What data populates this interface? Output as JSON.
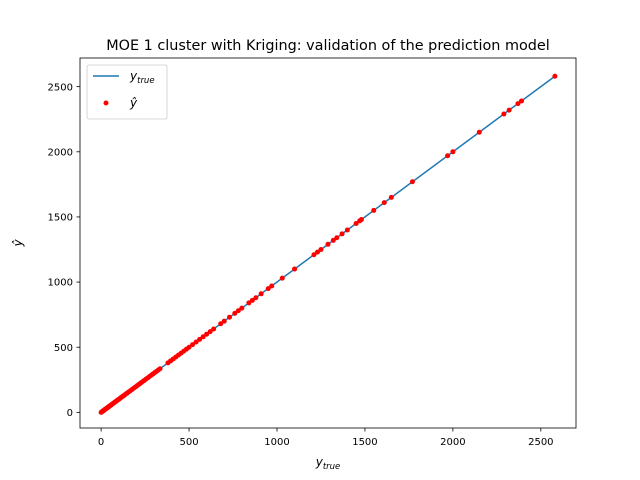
{
  "chart_data": {
    "type": "scatter",
    "title": "MOE 1 cluster with Kriging: validation of the prediction model",
    "xlabel": "y",
    "xlabel_sub": "true",
    "ylabel": "ŷ",
    "xlim": [
      -120,
      2700
    ],
    "ylim": [
      -120,
      2720
    ],
    "xticks": [
      0,
      500,
      1000,
      1500,
      2000,
      2500
    ],
    "yticks": [
      0,
      500,
      1000,
      1500,
      2000,
      2500
    ],
    "xtick_labels": [
      "0",
      "500",
      "1000",
      "1500",
      "2000",
      "2500"
    ],
    "ytick_labels": [
      "0",
      "500",
      "1000",
      "1500",
      "2000",
      "2500"
    ],
    "grid": false,
    "legend_position": "top-left",
    "series": [
      {
        "name": "y",
        "name_sub": "true",
        "kind": "line",
        "color": "#1f77b4",
        "x": [
          0,
          2580
        ],
        "y": [
          0,
          2580
        ]
      },
      {
        "name": "ŷ",
        "kind": "scatter",
        "color": "#ff0000",
        "x": [
          0,
          3,
          5,
          8,
          10,
          12,
          15,
          18,
          20,
          22,
          25,
          28,
          30,
          33,
          36,
          40,
          43,
          46,
          50,
          54,
          58,
          62,
          66,
          70,
          75,
          80,
          85,
          90,
          95,
          100,
          106,
          112,
          118,
          125,
          132,
          140,
          148,
          156,
          165,
          175,
          185,
          195,
          205,
          215,
          225,
          235,
          245,
          255,
          265,
          275,
          285,
          295,
          305,
          315,
          325,
          335,
          380,
          395,
          410,
          425,
          440,
          455,
          470,
          485,
          500,
          520,
          540,
          560,
          580,
          600,
          620,
          640,
          680,
          700,
          730,
          760,
          780,
          800,
          840,
          860,
          880,
          910,
          950,
          970,
          1030,
          1100,
          1210,
          1230,
          1250,
          1290,
          1320,
          1340,
          1370,
          1400,
          1450,
          1470,
          1480,
          1550,
          1610,
          1650,
          1770,
          1970,
          2000,
          2150,
          2290,
          2320,
          2370,
          2390,
          2580
        ],
        "y": [
          0,
          3,
          5,
          8,
          10,
          12,
          15,
          18,
          20,
          22,
          25,
          28,
          30,
          33,
          36,
          40,
          43,
          46,
          50,
          54,
          58,
          62,
          66,
          70,
          75,
          80,
          85,
          90,
          95,
          100,
          106,
          112,
          118,
          125,
          132,
          140,
          148,
          156,
          165,
          175,
          185,
          195,
          205,
          215,
          225,
          235,
          245,
          255,
          265,
          275,
          285,
          295,
          305,
          315,
          325,
          335,
          380,
          395,
          410,
          425,
          440,
          455,
          470,
          485,
          500,
          520,
          540,
          560,
          580,
          600,
          620,
          640,
          680,
          700,
          730,
          760,
          780,
          800,
          840,
          860,
          880,
          910,
          950,
          970,
          1030,
          1100,
          1210,
          1230,
          1250,
          1290,
          1320,
          1340,
          1370,
          1400,
          1450,
          1470,
          1480,
          1550,
          1610,
          1650,
          1770,
          1970,
          2000,
          2150,
          2290,
          2320,
          2370,
          2390,
          2580
        ]
      }
    ]
  }
}
